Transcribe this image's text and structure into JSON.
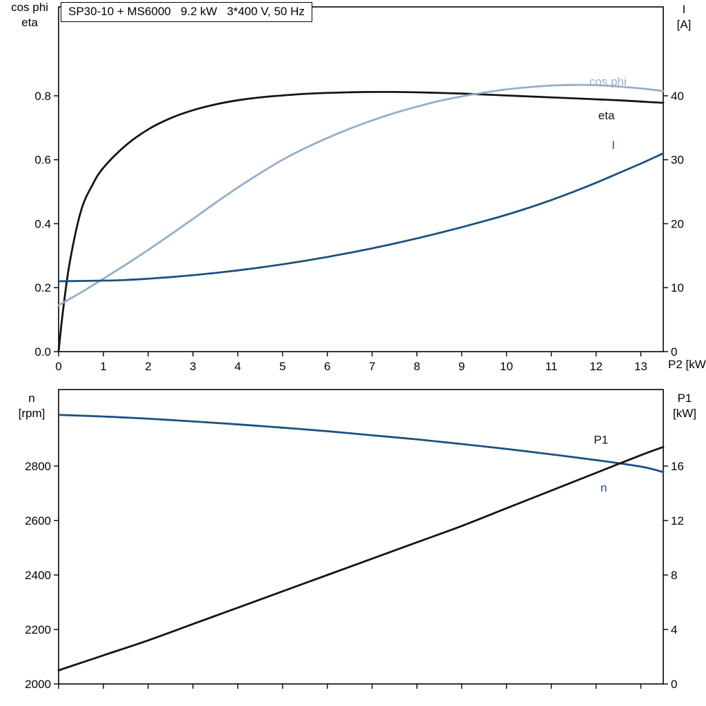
{
  "header": {
    "title": "SP30-10 + MS6000   9.2 kW   3*400 V, 50 Hz"
  },
  "labels": {
    "top_left_1": "cos phi",
    "top_left_2": "eta",
    "top_right_1": "I",
    "top_right_2": "[A]",
    "x_axis": "P2 [kW]",
    "bottom_left_1": "n",
    "bottom_left_2": "[rpm]",
    "bottom_right_1": "P1",
    "bottom_right_2": "[kW]"
  },
  "colors": {
    "black_curve": "#141414",
    "light_blue_curve": "#94afc7",
    "dark_blue_curve": "#1b5080",
    "axis": "#000000"
  },
  "chart_data": [
    {
      "type": "line",
      "title": "SP30-10 + MS6000   9.2 kW   3*400 V, 50 Hz",
      "xlabel": "P2 [kW]",
      "x_axis": {
        "lim": [
          0,
          13.5
        ],
        "tick_values": [
          0,
          1,
          2,
          3,
          4,
          5,
          6,
          7,
          8,
          9,
          10,
          11,
          12,
          13
        ],
        "tick_labels": [
          "0",
          "1",
          "2",
          "3",
          "4",
          "5",
          "6",
          "7",
          "8",
          "9",
          "10",
          "11",
          "12",
          "13"
        ],
        "show_labels": true
      },
      "left_axis": {
        "label": "cos phi / eta",
        "lim": [
          0,
          1.078
        ],
        "tick_values": [
          0,
          0.2,
          0.4,
          0.6,
          0.8
        ],
        "tick_labels": [
          "0.0",
          "0.2",
          "0.4",
          "0.6",
          "0.8"
        ]
      },
      "right_axis": {
        "label": "I [A]",
        "lim": [
          0,
          53.9
        ],
        "tick_values": [
          0,
          10,
          20,
          30,
          40
        ],
        "tick_labels": [
          "0",
          "10",
          "20",
          "30",
          "40"
        ]
      },
      "grid": false,
      "series": [
        {
          "name": "eta",
          "axis": "left",
          "color_key": "black_curve",
          "x": [
            0,
            0.1,
            0.25,
            0.5,
            0.75,
            1,
            1.5,
            2,
            2.5,
            3,
            3.5,
            4,
            4.5,
            5,
            5.5,
            6,
            6.5,
            7,
            7.5,
            8,
            8.5,
            9,
            9.5,
            10,
            10.5,
            11,
            11.5,
            12,
            12.5,
            13,
            13.5
          ],
          "y": [
            0,
            0.13,
            0.28,
            0.44,
            0.52,
            0.575,
            0.645,
            0.695,
            0.73,
            0.755,
            0.773,
            0.786,
            0.795,
            0.801,
            0.806,
            0.809,
            0.811,
            0.812,
            0.812,
            0.811,
            0.809,
            0.807,
            0.804,
            0.801,
            0.798,
            0.795,
            0.792,
            0.789,
            0.786,
            0.782,
            0.778
          ]
        },
        {
          "name": "cos phi",
          "axis": "left",
          "color_key": "light_blue_curve",
          "x": [
            0,
            0.5,
            1,
            1.5,
            2,
            2.5,
            3,
            3.5,
            4,
            4.5,
            5,
            5.5,
            6,
            6.5,
            7,
            7.5,
            8,
            8.5,
            9,
            9.5,
            10,
            10.5,
            11,
            11.5,
            12,
            12.5,
            13,
            13.5
          ],
          "y": [
            0.145,
            0.185,
            0.228,
            0.272,
            0.318,
            0.366,
            0.415,
            0.465,
            0.513,
            0.558,
            0.6,
            0.636,
            0.668,
            0.697,
            0.723,
            0.746,
            0.766,
            0.784,
            0.798,
            0.81,
            0.82,
            0.827,
            0.832,
            0.834,
            0.833,
            0.829,
            0.823,
            0.815
          ]
        },
        {
          "name": "I",
          "axis": "right",
          "color_key": "dark_blue_curve",
          "x": [
            0,
            0.5,
            1,
            1.5,
            2,
            2.5,
            3,
            3.5,
            4,
            4.5,
            5,
            5.5,
            6,
            6.5,
            7,
            7.5,
            8,
            8.5,
            9,
            9.5,
            10,
            10.5,
            11,
            11.5,
            12,
            12.5,
            13,
            13.5
          ],
          "y": [
            11.0,
            11.05,
            11.1,
            11.2,
            11.4,
            11.65,
            11.95,
            12.3,
            12.7,
            13.15,
            13.65,
            14.2,
            14.8,
            15.45,
            16.15,
            16.9,
            17.7,
            18.55,
            19.45,
            20.4,
            21.4,
            22.5,
            23.7,
            25.0,
            26.4,
            27.9,
            29.4,
            31.0
          ]
        }
      ],
      "annotations": [
        {
          "text": "cos phi",
          "x": 11.85,
          "y": 0.845,
          "axis": "left",
          "color_key": "light_blue_curve"
        },
        {
          "text": "eta",
          "x": 12.05,
          "y": 0.74,
          "axis": "left",
          "color_key": "black_curve"
        },
        {
          "text": "I",
          "x": 12.35,
          "y": 0.647,
          "axis": "left",
          "color_key": "dark_blue_curve"
        }
      ]
    },
    {
      "type": "line",
      "title": "",
      "xlabel": "",
      "x_axis": {
        "lim": [
          0,
          13.5
        ],
        "tick_values": [
          0,
          1,
          2,
          3,
          4,
          5,
          6,
          7,
          8,
          9,
          10,
          11,
          12,
          13
        ],
        "tick_labels": [],
        "show_labels": false
      },
      "left_axis": {
        "label": "n [rpm]",
        "lim": [
          2000,
          3081
        ],
        "tick_values": [
          2000,
          2200,
          2400,
          2600,
          2800
        ],
        "tick_labels": [
          "2000",
          "2200",
          "2400",
          "2600",
          "2800"
        ]
      },
      "right_axis": {
        "label": "P1 [kW]",
        "lim": [
          0,
          21.62
        ],
        "tick_values": [
          0,
          4,
          8,
          12,
          16
        ],
        "tick_labels": [
          "0",
          "4",
          "8",
          "12",
          "16"
        ]
      },
      "grid": false,
      "series": [
        {
          "name": "n",
          "axis": "left",
          "color_key": "dark_blue_curve",
          "x": [
            0,
            1,
            2,
            3,
            4,
            5,
            6,
            7,
            8,
            9,
            10,
            11,
            12,
            13,
            13.5
          ],
          "y": [
            2988,
            2982,
            2974,
            2964,
            2953,
            2941,
            2928,
            2913,
            2898,
            2881,
            2863,
            2843,
            2822,
            2798,
            2778
          ]
        },
        {
          "name": "P1",
          "axis": "right",
          "color_key": "black_curve",
          "x": [
            0,
            1,
            2,
            3,
            4,
            5,
            6,
            7,
            8,
            9,
            10,
            11,
            12,
            13,
            13.5
          ],
          "y": [
            1.0,
            2.1,
            3.2,
            4.4,
            5.6,
            6.8,
            8.0,
            9.2,
            10.4,
            11.6,
            12.9,
            14.2,
            15.5,
            16.8,
            17.4
          ]
        }
      ],
      "annotations": [
        {
          "text": "P1",
          "x": 11.95,
          "y": 2898,
          "axis": "left",
          "color_key": "black_curve"
        },
        {
          "text": "n",
          "x": 12.1,
          "y": 2722,
          "axis": "left",
          "color_key": "dark_blue_curve"
        }
      ]
    }
  ]
}
